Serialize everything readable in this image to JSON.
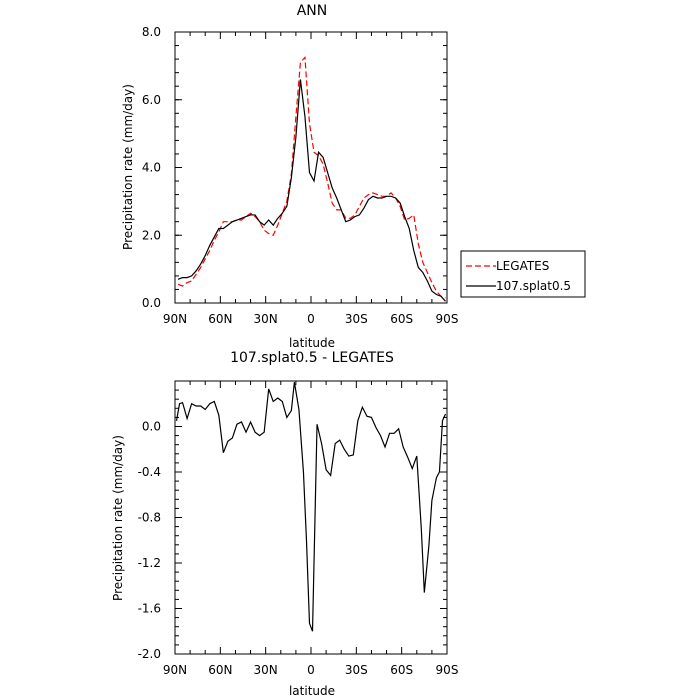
{
  "chart_data": [
    {
      "type": "line",
      "title": "ANN",
      "xlabel": "latitude",
      "ylabel": "Precipitation rate (mm/day)",
      "xlim": [
        -90,
        90
      ],
      "ylim": [
        0,
        8
      ],
      "x_ticks": [
        {
          "value": -90,
          "label": "90N"
        },
        {
          "value": -60,
          "label": "60N"
        },
        {
          "value": -30,
          "label": "30N"
        },
        {
          "value": 0,
          "label": "0"
        },
        {
          "value": 30,
          "label": "30S"
        },
        {
          "value": 60,
          "label": "60S"
        },
        {
          "value": 90,
          "label": "90S"
        }
      ],
      "y_ticks": [
        {
          "value": 0,
          "label": "0.0"
        },
        {
          "value": 2,
          "label": "2.0"
        },
        {
          "value": 4,
          "label": "4.0"
        },
        {
          "value": 6,
          "label": "6.0"
        },
        {
          "value": 8,
          "label": "8.0"
        }
      ],
      "legend": {
        "placement": "right"
      },
      "series": [
        {
          "name": "LEGATES",
          "color": "#ff0000",
          "dash": "dashed",
          "points": [
            [
              -88,
              0.55
            ],
            [
              -85,
              0.5
            ],
            [
              -82,
              0.6
            ],
            [
              -79,
              0.65
            ],
            [
              -76,
              0.85
            ],
            [
              -73,
              1.05
            ],
            [
              -70,
              1.3
            ],
            [
              -67,
              1.55
            ],
            [
              -64,
              1.85
            ],
            [
              -61,
              2.1
            ],
            [
              -58,
              2.4
            ],
            [
              -55,
              2.4
            ],
            [
              -52,
              2.4
            ],
            [
              -49,
              2.45
            ],
            [
              -46,
              2.45
            ],
            [
              -43,
              2.55
            ],
            [
              -40,
              2.65
            ],
            [
              -37,
              2.55
            ],
            [
              -34,
              2.4
            ],
            [
              -31,
              2.15
            ],
            [
              -28,
              2.05
            ],
            [
              -25,
              2.0
            ],
            [
              -22,
              2.3
            ],
            [
              -19,
              2.65
            ],
            [
              -16,
              3.0
            ],
            [
              -13,
              3.8
            ],
            [
              -10,
              5.5
            ],
            [
              -7,
              7.1
            ],
            [
              -4,
              7.25
            ],
            [
              -1,
              5.3
            ],
            [
              2,
              4.45
            ],
            [
              5,
              4.35
            ],
            [
              8,
              4.1
            ],
            [
              11,
              3.55
            ],
            [
              14,
              2.95
            ],
            [
              17,
              2.75
            ],
            [
              20,
              2.75
            ],
            [
              23,
              2.5
            ],
            [
              26,
              2.5
            ],
            [
              29,
              2.6
            ],
            [
              32,
              2.85
            ],
            [
              35,
              3.1
            ],
            [
              38,
              3.2
            ],
            [
              41,
              3.25
            ],
            [
              44,
              3.2
            ],
            [
              47,
              3.15
            ],
            [
              50,
              3.15
            ],
            [
              53,
              3.25
            ],
            [
              56,
              3.1
            ],
            [
              59,
              2.85
            ],
            [
              62,
              2.45
            ],
            [
              65,
              2.5
            ],
            [
              68,
              2.6
            ],
            [
              71,
              1.75
            ],
            [
              74,
              1.2
            ],
            [
              77,
              0.9
            ],
            [
              80,
              0.6
            ],
            [
              83,
              0.35
            ],
            [
              86,
              0.2
            ],
            [
              89,
              0.15
            ]
          ]
        },
        {
          "name": "107.splat0.5",
          "color": "#000000",
          "dash": "solid",
          "points": [
            [
              -88,
              0.7
            ],
            [
              -85,
              0.75
            ],
            [
              -82,
              0.75
            ],
            [
              -79,
              0.8
            ],
            [
              -76,
              0.95
            ],
            [
              -73,
              1.15
            ],
            [
              -70,
              1.4
            ],
            [
              -67,
              1.7
            ],
            [
              -64,
              1.95
            ],
            [
              -61,
              2.2
            ],
            [
              -58,
              2.2
            ],
            [
              -55,
              2.3
            ],
            [
              -52,
              2.4
            ],
            [
              -49,
              2.45
            ],
            [
              -46,
              2.5
            ],
            [
              -43,
              2.55
            ],
            [
              -40,
              2.6
            ],
            [
              -37,
              2.6
            ],
            [
              -34,
              2.4
            ],
            [
              -31,
              2.3
            ],
            [
              -28,
              2.45
            ],
            [
              -25,
              2.3
            ],
            [
              -22,
              2.5
            ],
            [
              -19,
              2.65
            ],
            [
              -16,
              2.85
            ],
            [
              -13,
              3.7
            ],
            [
              -10,
              4.9
            ],
            [
              -7,
              6.6
            ],
            [
              -4,
              5.5
            ],
            [
              -1,
              3.85
            ],
            [
              2,
              3.6
            ],
            [
              5,
              4.45
            ],
            [
              8,
              4.3
            ],
            [
              11,
              3.85
            ],
            [
              14,
              3.4
            ],
            [
              17,
              3.1
            ],
            [
              20,
              2.75
            ],
            [
              23,
              2.4
            ],
            [
              26,
              2.45
            ],
            [
              29,
              2.55
            ],
            [
              32,
              2.6
            ],
            [
              35,
              2.8
            ],
            [
              38,
              3.05
            ],
            [
              41,
              3.15
            ],
            [
              44,
              3.1
            ],
            [
              47,
              3.1
            ],
            [
              50,
              3.15
            ],
            [
              53,
              3.15
            ],
            [
              56,
              3.1
            ],
            [
              59,
              2.95
            ],
            [
              62,
              2.55
            ],
            [
              65,
              2.2
            ],
            [
              68,
              1.55
            ],
            [
              71,
              1.05
            ],
            [
              74,
              0.9
            ],
            [
              77,
              0.65
            ],
            [
              80,
              0.35
            ],
            [
              83,
              0.25
            ],
            [
              86,
              0.2
            ],
            [
              89,
              0.05
            ]
          ]
        }
      ]
    },
    {
      "type": "line",
      "title": "107.splat0.5 - LEGATES",
      "xlabel": "latitude",
      "ylabel": "Precipitation rate (mm/day)",
      "xlim": [
        -90,
        90
      ],
      "ylim": [
        -2.0,
        0.4
      ],
      "x_ticks": [
        {
          "value": -90,
          "label": "90N"
        },
        {
          "value": -60,
          "label": "60N"
        },
        {
          "value": -30,
          "label": "30N"
        },
        {
          "value": 0,
          "label": "0"
        },
        {
          "value": 30,
          "label": "30S"
        },
        {
          "value": 60,
          "label": "60S"
        },
        {
          "value": 90,
          "label": "90S"
        }
      ],
      "y_ticks": [
        {
          "value": -2.0,
          "label": "-2.0"
        },
        {
          "value": -1.6,
          "label": "-1.6"
        },
        {
          "value": -1.2,
          "label": "-1.2"
        },
        {
          "value": -0.8,
          "label": "-0.8"
        },
        {
          "value": -0.4,
          "label": "-0.4"
        },
        {
          "value": 0.0,
          "label": "0.0"
        }
      ],
      "series": [
        {
          "color": "#000000",
          "dash": "solid",
          "points": [
            [
              -89,
              0.05
            ],
            [
              -87,
              0.2
            ],
            [
              -85,
              0.21
            ],
            [
              -82,
              0.07
            ],
            [
              -79,
              0.2
            ],
            [
              -76,
              0.18
            ],
            [
              -73,
              0.18
            ],
            [
              -70,
              0.15
            ],
            [
              -67,
              0.2
            ],
            [
              -64,
              0.22
            ],
            [
              -61,
              0.1
            ],
            [
              -58,
              -0.23
            ],
            [
              -55,
              -0.13
            ],
            [
              -52,
              -0.1
            ],
            [
              -49,
              0.02
            ],
            [
              -46,
              0.04
            ],
            [
              -43,
              -0.05
            ],
            [
              -40,
              0.04
            ],
            [
              -37,
              -0.05
            ],
            [
              -34,
              -0.08
            ],
            [
              -31,
              -0.05
            ],
            [
              -28,
              0.33
            ],
            [
              -25,
              0.22
            ],
            [
              -22,
              0.25
            ],
            [
              -19,
              0.22
            ],
            [
              -16,
              0.08
            ],
            [
              -13,
              0.14
            ],
            [
              -11,
              0.39
            ],
            [
              -8,
              0.15
            ],
            [
              -5,
              -0.4
            ],
            [
              -3,
              -1.0
            ],
            [
              -1,
              -1.73
            ],
            [
              1,
              -1.8
            ],
            [
              4,
              0.02
            ],
            [
              7,
              -0.15
            ],
            [
              10,
              -0.38
            ],
            [
              13,
              -0.43
            ],
            [
              16,
              -0.15
            ],
            [
              19,
              -0.12
            ],
            [
              22,
              -0.2
            ],
            [
              25,
              -0.26
            ],
            [
              28,
              -0.25
            ],
            [
              31,
              0.05
            ],
            [
              34,
              0.17
            ],
            [
              37,
              0.09
            ],
            [
              40,
              0.08
            ],
            [
              43,
              -0.01
            ],
            [
              46,
              -0.08
            ],
            [
              49,
              -0.18
            ],
            [
              52,
              -0.06
            ],
            [
              55,
              -0.06
            ],
            [
              58,
              -0.02
            ],
            [
              61,
              -0.18
            ],
            [
              64,
              -0.27
            ],
            [
              67,
              -0.37
            ],
            [
              70,
              -0.26
            ],
            [
              73,
              -0.9
            ],
            [
              75,
              -1.46
            ],
            [
              78,
              -1.05
            ],
            [
              80,
              -0.65
            ],
            [
              83,
              -0.45
            ],
            [
              85,
              -0.4
            ],
            [
              87,
              0.05
            ],
            [
              89,
              0.11
            ]
          ]
        }
      ]
    }
  ]
}
